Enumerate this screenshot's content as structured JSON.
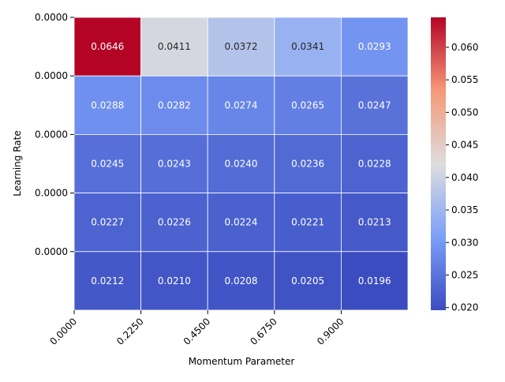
{
  "chart_data": {
    "type": "heatmap",
    "title": "",
    "xlabel": "Momentum Parameter",
    "ylabel": "Learning Rate",
    "x_tick_labels": [
      "0.0000",
      "0.2250",
      "0.4500",
      "0.6750",
      "0.9000"
    ],
    "y_tick_labels": [
      "0.0000",
      "0.0000",
      "0.0000",
      "0.0000",
      "0.0000"
    ],
    "values": [
      [
        0.0646,
        0.0411,
        0.0372,
        0.0341,
        0.0293
      ],
      [
        0.0288,
        0.0282,
        0.0274,
        0.0265,
        0.0247
      ],
      [
        0.0245,
        0.0243,
        0.024,
        0.0236,
        0.0228
      ],
      [
        0.0227,
        0.0226,
        0.0224,
        0.0221,
        0.0213
      ],
      [
        0.0212,
        0.021,
        0.0208,
        0.0205,
        0.0196
      ]
    ],
    "value_labels": [
      [
        "0.0646",
        "0.0411",
        "0.0372",
        "0.0341",
        "0.0293"
      ],
      [
        "0.0288",
        "0.0282",
        "0.0274",
        "0.0265",
        "0.0247"
      ],
      [
        "0.0245",
        "0.0243",
        "0.0240",
        "0.0236",
        "0.0228"
      ],
      [
        "0.0227",
        "0.0226",
        "0.0224",
        "0.0221",
        "0.0213"
      ],
      [
        "0.0212",
        "0.0210",
        "0.0208",
        "0.0205",
        "0.0196"
      ]
    ],
    "colormap": "coolwarm",
    "vmin": 0.0196,
    "vmax": 0.0646,
    "colorbar_ticks": [
      0.02,
      0.025,
      0.03,
      0.035,
      0.04,
      0.045,
      0.05,
      0.055,
      0.06
    ],
    "colorbar_tick_labels": [
      "0.020",
      "0.025",
      "0.030",
      "0.035",
      "0.040",
      "0.045",
      "0.050",
      "0.055",
      "0.060"
    ],
    "grid": false,
    "colors": {
      "cool": "#3b4cc0",
      "mid": "#dddddd",
      "warm": "#b40426",
      "cell_border": "#ffffff",
      "text": "#262626"
    }
  }
}
